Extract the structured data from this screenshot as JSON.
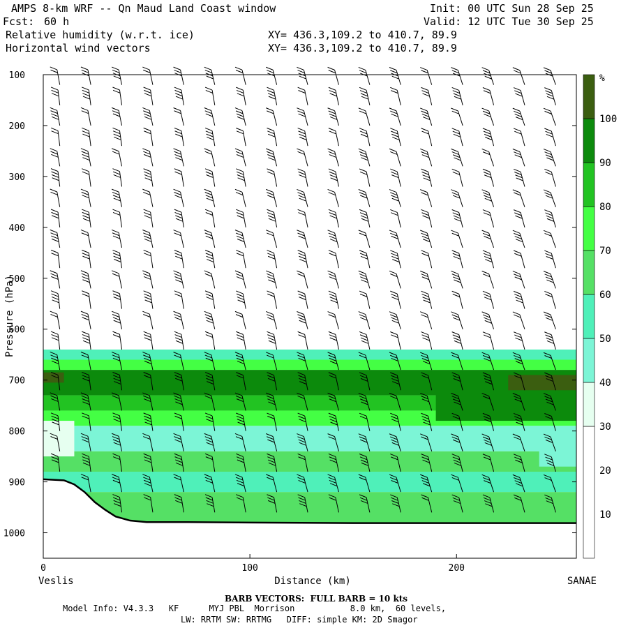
{
  "header": {
    "title": "AMPS 8-km WRF -- Qn Maud Land Coast window",
    "fcst_label": "Fcst:",
    "fcst_value": "60 h",
    "init": "Init: 00 UTC Sun 28 Sep 25",
    "valid": "Valid: 12 UTC Tue 30 Sep 25",
    "field1": "Relative humidity (w.r.t. ice)",
    "field2": "Horizontal wind vectors",
    "xy1": "XY= 436.3,109.2 to 410.7, 89.9",
    "xy2": "XY= 436.3,109.2 to 410.7, 89.9"
  },
  "footer": {
    "barb_note": "BARB VECTORS:  FULL BARB = 10 kts",
    "model_info": "Model Info: V4.3.3   KF      MYJ PBL  Morrison           8.0 km,  60 levels,",
    "model_info2": "LW: RRTM SW: RRTMG   DIFF: simple KM: 2D Smagor"
  },
  "chart_data": {
    "type": "heatmap",
    "title": "Relative humidity (w.r.t. ice) cross-section with horizontal wind barbs",
    "xlabel": "Distance (km)",
    "ylabel": "Pressure (hPa)",
    "xlim": [
      0,
      258
    ],
    "ylim": [
      1050,
      100
    ],
    "x_ticks": [
      0,
      100,
      200
    ],
    "y_ticks": [
      100,
      200,
      300,
      400,
      500,
      600,
      700,
      800,
      900,
      1000
    ],
    "start_label": "Veslis",
    "end_label": "SANAE",
    "colorbar_unit": "%",
    "colorbar_ticks": [
      10,
      20,
      30,
      40,
      50,
      60,
      70,
      80,
      90,
      100
    ],
    "colorbar_levels": [
      {
        "from": 0,
        "to": 30,
        "color": "#ffffff"
      },
      {
        "from": 30,
        "to": 40,
        "color": "#e6fff0"
      },
      {
        "from": 40,
        "to": 50,
        "color": "#7cf5d6"
      },
      {
        "from": 50,
        "to": 60,
        "color": "#4ff0b9"
      },
      {
        "from": 60,
        "to": 70,
        "color": "#55e065"
      },
      {
        "from": 70,
        "to": 80,
        "color": "#44ff44"
      },
      {
        "from": 80,
        "to": 90,
        "color": "#22c322"
      },
      {
        "from": 90,
        "to": 100,
        "color": "#0c8a0c"
      },
      {
        "from": 100,
        "to": 110,
        "color": "#3b5e10"
      }
    ],
    "rh_layers": [
      {
        "p_top": 640,
        "p_bot": 660,
        "rh": 52
      },
      {
        "p_top": 660,
        "p_bot": 680,
        "rh": 75
      },
      {
        "p_top": 680,
        "p_bot": 730,
        "rh": 92
      },
      {
        "p_top": 730,
        "p_bot": 760,
        "rh": 82
      },
      {
        "p_top": 760,
        "p_bot": 790,
        "rh": 72
      },
      {
        "p_top": 790,
        "p_bot": 840,
        "rh": 48
      },
      {
        "p_top": 840,
        "p_bot": 880,
        "rh": 66
      },
      {
        "p_top": 880,
        "p_bot": 920,
        "rh": 58
      },
      {
        "p_top": 920,
        "p_bot": 985,
        "rh": 66
      }
    ],
    "rh_features": [
      {
        "x0": 0,
        "x1": 15,
        "p_top": 780,
        "p_bot": 850,
        "rh": 35
      },
      {
        "x0": 190,
        "x1": 258,
        "p_top": 700,
        "p_bot": 780,
        "rh": 92
      },
      {
        "x0": 225,
        "x1": 258,
        "p_top": 690,
        "p_bot": 720,
        "rh": 102
      },
      {
        "x0": 0,
        "x1": 10,
        "p_top": 685,
        "p_bot": 705,
        "rh": 102
      },
      {
        "x0": 240,
        "x1": 258,
        "p_top": 830,
        "p_bot": 870,
        "rh": 42
      }
    ],
    "terrain": [
      {
        "x": 0,
        "p": 895
      },
      {
        "x": 10,
        "p": 897
      },
      {
        "x": 15,
        "p": 905
      },
      {
        "x": 20,
        "p": 920
      },
      {
        "x": 25,
        "p": 940
      },
      {
        "x": 30,
        "p": 955
      },
      {
        "x": 35,
        "p": 968
      },
      {
        "x": 42,
        "p": 976
      },
      {
        "x": 50,
        "p": 979
      },
      {
        "x": 70,
        "p": 979
      },
      {
        "x": 100,
        "p": 980
      },
      {
        "x": 150,
        "p": 981
      },
      {
        "x": 200,
        "p": 981
      },
      {
        "x": 258,
        "p": 981
      }
    ],
    "barb_columns_x": [
      8,
      23,
      38,
      53,
      68,
      83,
      98,
      113,
      128,
      143,
      158,
      173,
      188,
      203,
      218,
      233,
      248
    ],
    "barb_levels_p": [
      120,
      160,
      200,
      240,
      280,
      320,
      360,
      400,
      440,
      480,
      520,
      560,
      600,
      640,
      680,
      720,
      760,
      800,
      840,
      880,
      920,
      960
    ],
    "barb_note": "BARB VECTORS:  FULL BARB = 10 kts"
  }
}
